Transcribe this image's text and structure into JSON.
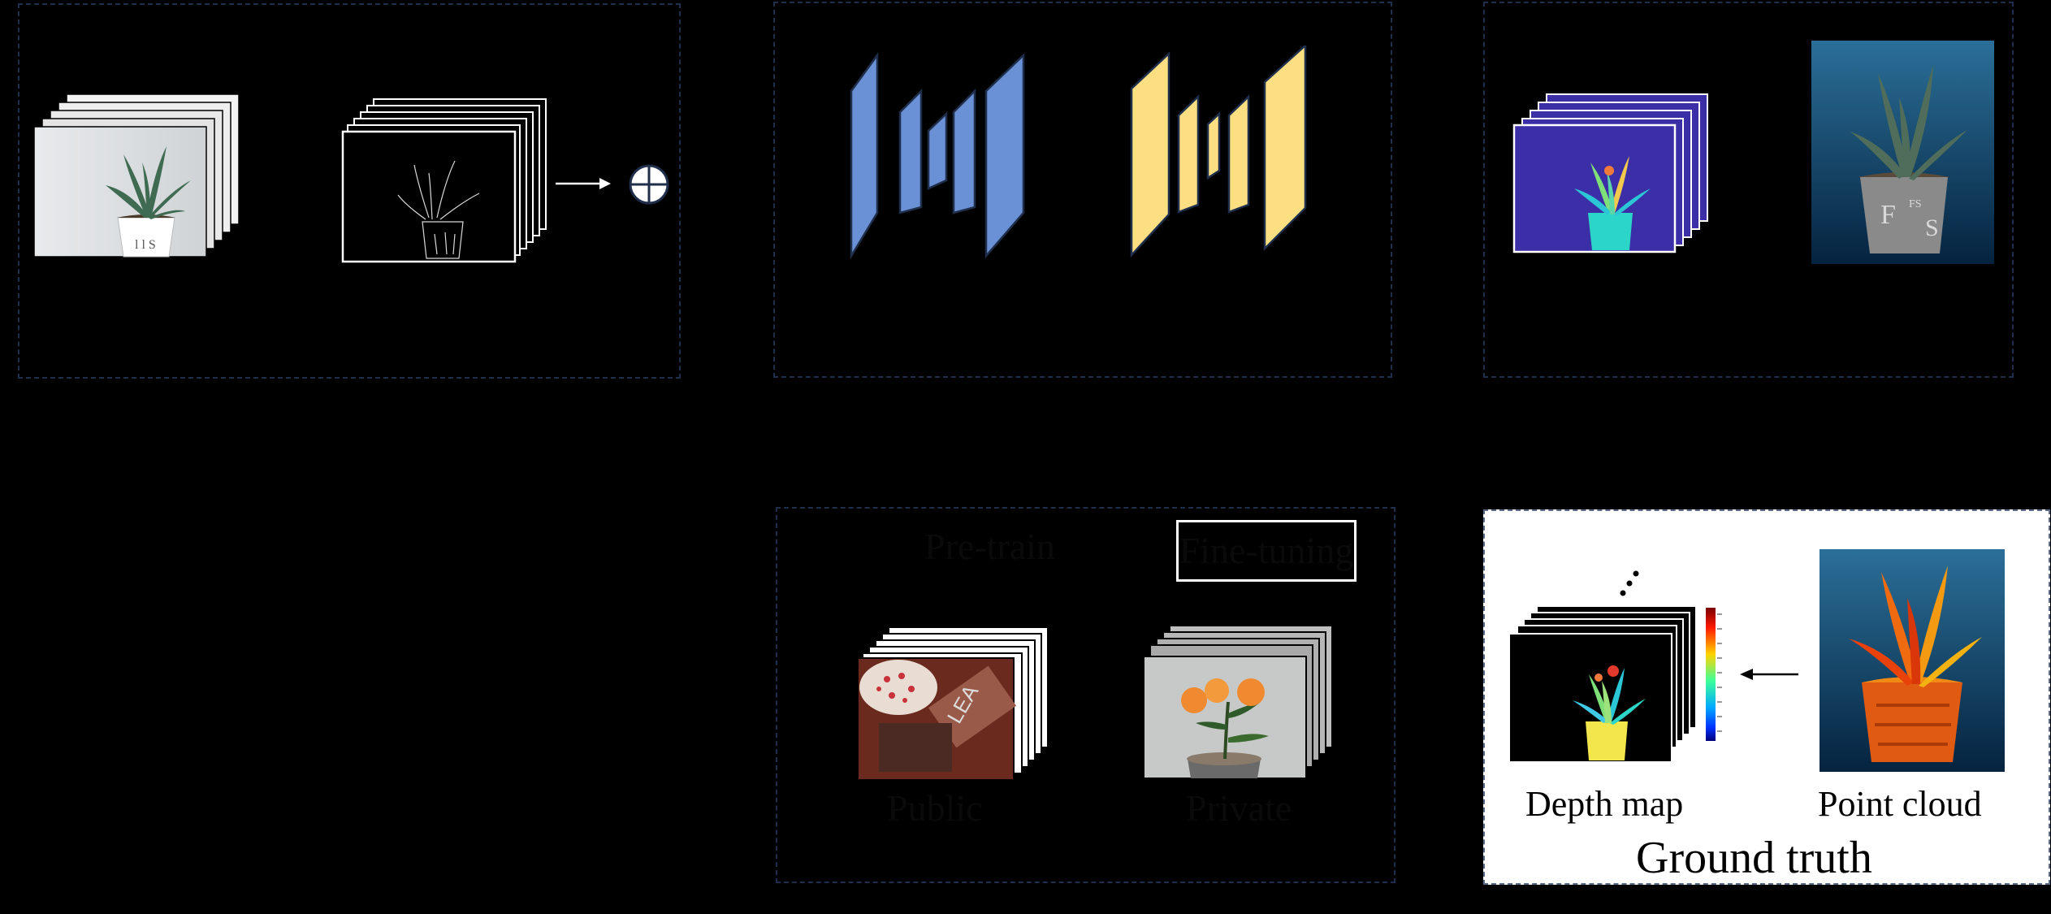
{
  "gt_panel": {
    "title": "Ground truth",
    "depth_map_label": "Depth map",
    "point_cloud_label": "Point cloud"
  },
  "training_panel": {
    "pretrain_label": "Pre-train",
    "finetune_label": "Fine-tuning",
    "public_label": "Public",
    "private_label": "Private"
  },
  "colors": {
    "background": "#000000",
    "encoder_blue": "#6a90d6",
    "decoder_yellow": "#fbdf82",
    "panel_border": "#1f2e4a",
    "gt_panel_bg": "#ffffff",
    "depth_bg": "#3b2ea6"
  },
  "icons": [
    "plus-circle-icon",
    "arrow-right-icon",
    "arrow-left-icon",
    "ellipsis-icon"
  ]
}
